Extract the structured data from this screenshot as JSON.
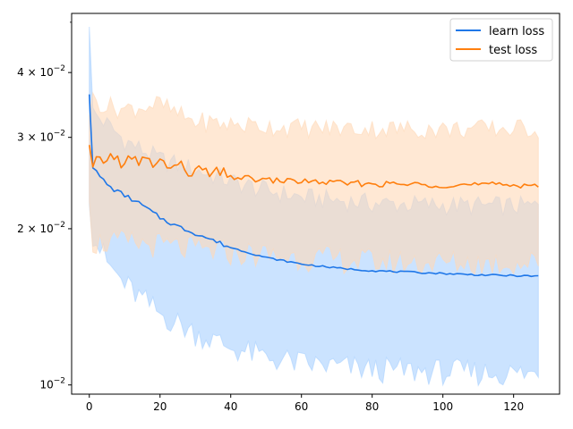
{
  "chart_data": {
    "type": "line",
    "title": "",
    "xlabel": "",
    "ylabel": "",
    "y_scale": "log",
    "xlim": [
      -5,
      133
    ],
    "ylim": [
      0.0096,
      0.052
    ],
    "x_ticks": [
      0,
      20,
      40,
      60,
      80,
      100,
      120
    ],
    "x_tick_labels": [
      "0",
      "20",
      "40",
      "60",
      "80",
      "100",
      "120"
    ],
    "y_ticks": [
      0.01,
      0.02,
      0.03,
      0.04
    ],
    "y_tick_labels": [
      {
        "base": "10",
        "exp": "−2"
      },
      {
        "base": "2 × 10",
        "exp": "−2"
      },
      {
        "base": "3 × 10",
        "exp": "−2"
      },
      {
        "base": "4 × 10",
        "exp": "−2"
      }
    ],
    "grid": false,
    "legend_position": "top-right",
    "x_range": [
      0,
      127
    ],
    "series": [
      {
        "name": "learn loss",
        "color": "#1f77e8",
        "band_color": "#a8d0ff",
        "keypoints": [
          [
            0,
            0.0363
          ],
          [
            1,
            0.0262
          ],
          [
            3,
            0.0252
          ],
          [
            6,
            0.024
          ],
          [
            10,
            0.0232
          ],
          [
            15,
            0.0222
          ],
          [
            20,
            0.021
          ],
          [
            25,
            0.0202
          ],
          [
            30,
            0.0196
          ],
          [
            35,
            0.019
          ],
          [
            40,
            0.0184
          ],
          [
            50,
            0.0176
          ],
          [
            60,
            0.0171
          ],
          [
            70,
            0.0168
          ],
          [
            80,
            0.0166
          ],
          [
            90,
            0.0165
          ],
          [
            100,
            0.0164
          ],
          [
            110,
            0.0163
          ],
          [
            127,
            0.0162
          ]
        ],
        "upper_keypoints": [
          [
            0,
            0.049
          ],
          [
            1,
            0.0335
          ],
          [
            5,
            0.0318
          ],
          [
            10,
            0.0296
          ],
          [
            20,
            0.0272
          ],
          [
            30,
            0.026
          ],
          [
            40,
            0.0247
          ],
          [
            50,
            0.0237
          ],
          [
            60,
            0.023
          ],
          [
            80,
            0.0224
          ],
          [
            100,
            0.0222
          ],
          [
            127,
            0.0221
          ]
        ],
        "lower_keypoints": [
          [
            0,
            0.0222
          ],
          [
            1,
            0.0195
          ],
          [
            5,
            0.0172
          ],
          [
            10,
            0.0156
          ],
          [
            20,
            0.0137
          ],
          [
            30,
            0.0126
          ],
          [
            40,
            0.0118
          ],
          [
            50,
            0.0113
          ],
          [
            60,
            0.011
          ],
          [
            80,
            0.0107
          ],
          [
            100,
            0.0106
          ],
          [
            127,
            0.0105
          ]
        ]
      },
      {
        "name": "test loss",
        "color": "#ff7f0e",
        "band_color": "#ffd9b8",
        "keypoints": [
          [
            0,
            0.029
          ],
          [
            1,
            0.0263
          ],
          [
            5,
            0.0275
          ],
          [
            10,
            0.027
          ],
          [
            20,
            0.0268
          ],
          [
            25,
            0.0262
          ],
          [
            30,
            0.0258
          ],
          [
            40,
            0.0252
          ],
          [
            50,
            0.0248
          ],
          [
            60,
            0.0247
          ],
          [
            70,
            0.0245
          ],
          [
            80,
            0.0244
          ],
          [
            100,
            0.0243
          ],
          [
            127,
            0.0243
          ]
        ],
        "upper_keypoints": [
          [
            0,
            0.033
          ],
          [
            1,
            0.0355
          ],
          [
            5,
            0.0345
          ],
          [
            10,
            0.034
          ],
          [
            20,
            0.0348
          ],
          [
            25,
            0.0332
          ],
          [
            30,
            0.0322
          ],
          [
            40,
            0.0318
          ],
          [
            60,
            0.0313
          ],
          [
            80,
            0.0312
          ],
          [
            100,
            0.0311
          ],
          [
            127,
            0.0312
          ]
        ],
        "lower_keypoints": [
          [
            0,
            0.0225
          ],
          [
            1,
            0.0188
          ],
          [
            5,
            0.0188
          ],
          [
            10,
            0.0188
          ],
          [
            20,
            0.0186
          ],
          [
            30,
            0.0182
          ],
          [
            40,
            0.018
          ],
          [
            60,
            0.0176
          ],
          [
            80,
            0.0173
          ],
          [
            100,
            0.0172
          ],
          [
            127,
            0.0172
          ]
        ]
      }
    ]
  }
}
